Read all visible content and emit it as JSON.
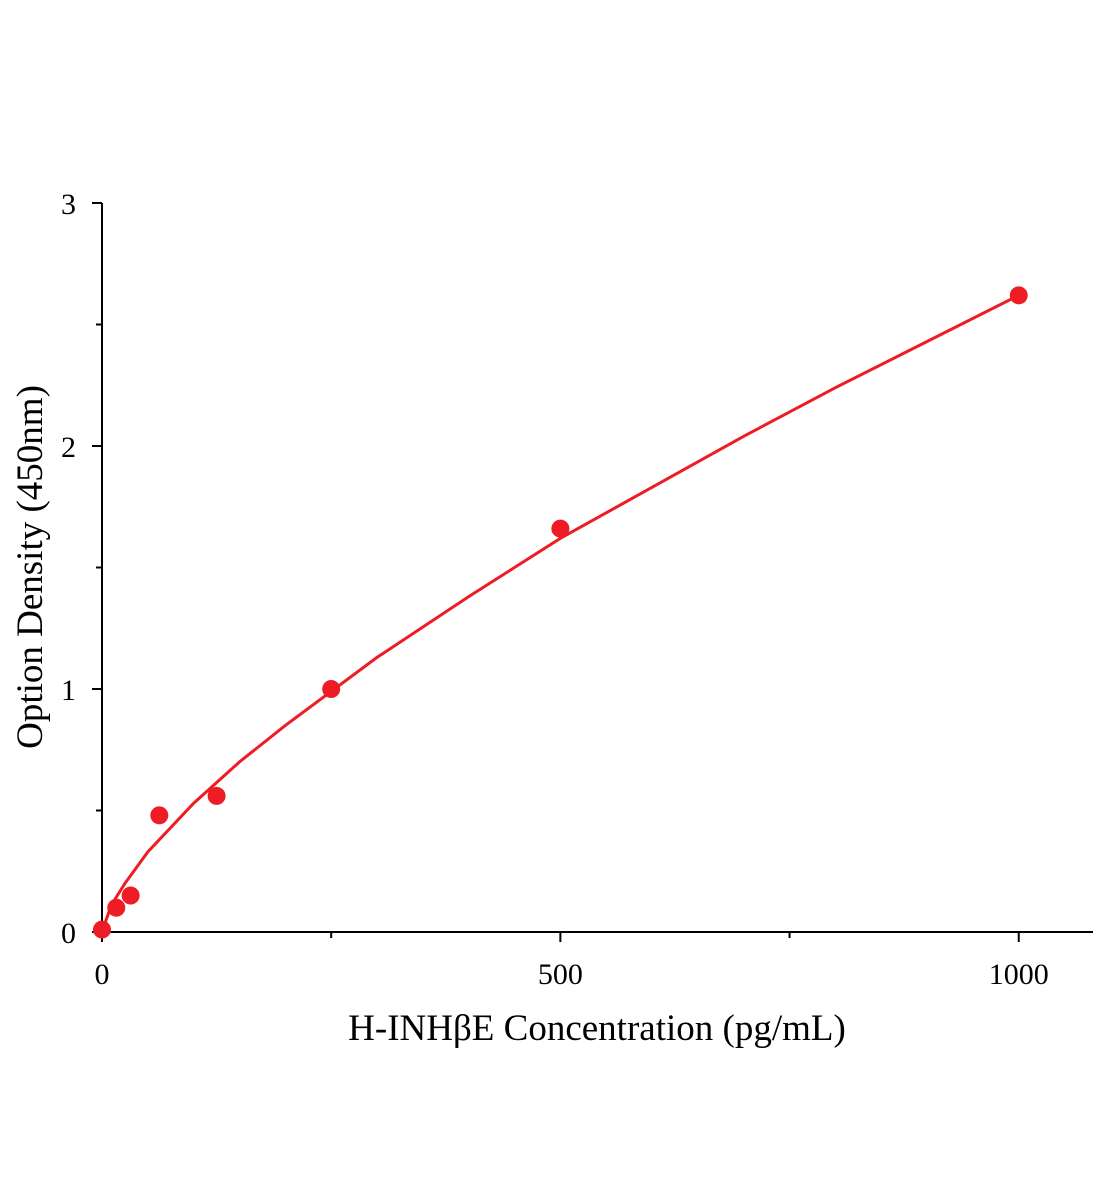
{
  "chart_data": {
    "type": "scatter",
    "xlabel": "H-INHβE Concentration (pg/mL)",
    "ylabel": "Option Density (450nm)",
    "xlim": [
      0,
      1081
    ],
    "ylim": [
      0,
      3
    ],
    "xticks": [
      0,
      500,
      1000
    ],
    "yticks": [
      0,
      1,
      2,
      3
    ],
    "xminorticks": [
      250,
      750
    ],
    "yminorticks": [
      0.5,
      1.5,
      2.5
    ],
    "series": [
      {
        "color": "#ee1c25",
        "x": [
          0,
          15.6,
          31.25,
          62.5,
          125,
          250,
          500,
          1000
        ],
        "values": [
          0.01,
          0.1,
          0.15,
          0.48,
          0.56,
          1.0,
          1.66,
          2.62
        ]
      },
      {
        "type": "line",
        "color": "#ee1c25",
        "x": [
          0,
          10,
          25,
          50,
          100,
          150,
          200,
          300,
          400,
          500,
          600,
          700,
          800,
          900,
          1000
        ],
        "values": [
          0,
          0.11,
          0.2,
          0.33,
          0.53,
          0.7,
          0.85,
          1.13,
          1.38,
          1.62,
          1.83,
          2.04,
          2.24,
          2.43,
          2.62
        ]
      }
    ]
  }
}
